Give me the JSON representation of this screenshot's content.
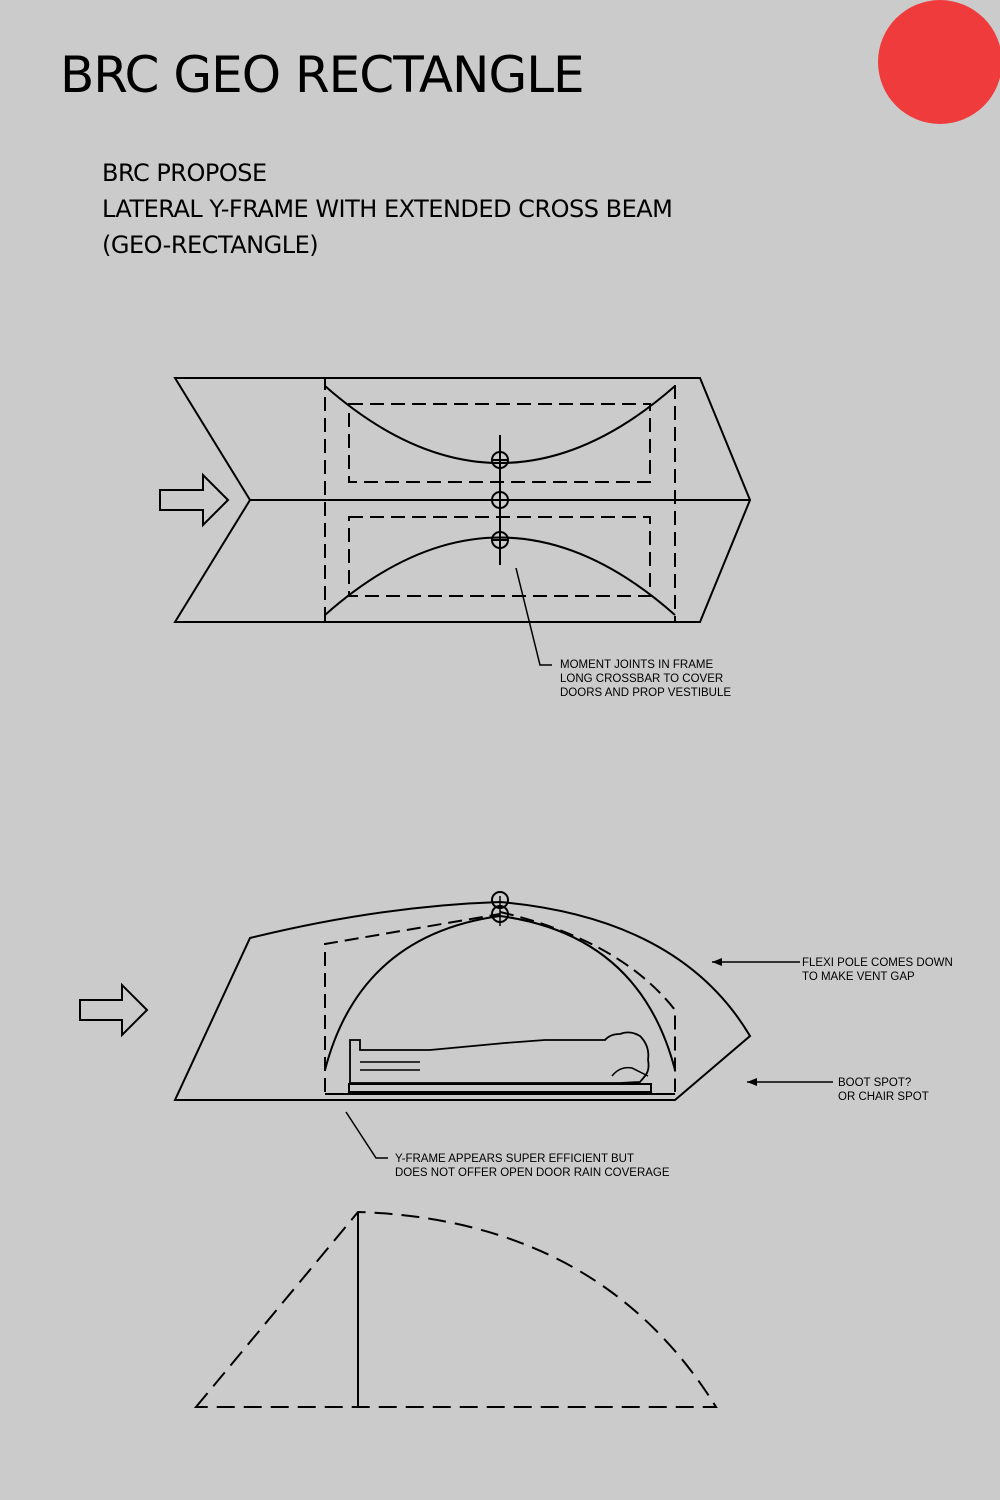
{
  "title": "BRC GEO RECTANGLE",
  "subtitle": {
    "line1": "BRC PROPOSE",
    "line2": "LATERAL Y-FRAME WITH EXTENDED CROSS BEAM",
    "line3": "(GEO-RECTANGLE)"
  },
  "annotations": {
    "moment_joints": [
      "MOMENT JOINTS IN FRAME",
      "LONG CROSSBAR TO COVER",
      "DOORS AND PROP VESTIBULE"
    ],
    "flexi_pole": [
      "FLEXI POLE COMES DOWN",
      "TO MAKE VENT GAP"
    ],
    "boot_spot": [
      "BOOT SPOT?",
      "OR CHAIR SPOT"
    ],
    "y_frame": [
      "Y-FRAME APPEARS SUPER EFFICIENT BUT",
      "DOES NOT OFFER OPEN DOOR RAIN COVERAGE"
    ]
  },
  "colors": {
    "background": "#cbcbcb",
    "accent_dot": "#ef3b3b",
    "line": "#000000"
  }
}
